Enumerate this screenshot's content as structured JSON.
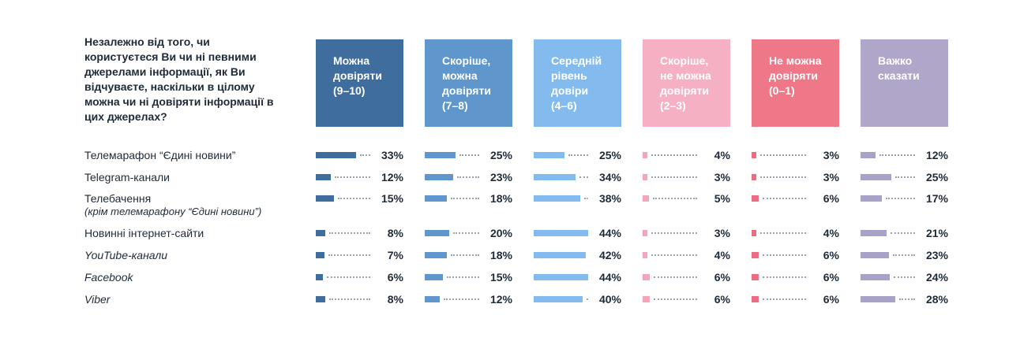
{
  "question": "Незалежно від того, чи користуєтеся Ви чи ні певними джерелами інформації, як Ви відчуваєте, наскільки в цілому можна чи ні довіряти інформації в цих джерелах?",
  "chart_data": {
    "type": "bar",
    "orientation": "horizontal",
    "categories": [
      {
        "label": "Телемарафон “Єдині новини”",
        "sublabel": "",
        "italic": false
      },
      {
        "label": "Telegram-канали",
        "sublabel": "",
        "italic": false
      },
      {
        "label": "Телебачення",
        "sublabel": "(крім телемарафону “Єдині новини”)",
        "italic": false
      },
      {
        "label": "Новинні інтернет-сайти",
        "sublabel": "",
        "italic": false
      },
      {
        "label": "YouTube-канали",
        "sublabel": "",
        "italic": true
      },
      {
        "label": "Facebook",
        "sublabel": "",
        "italic": true
      },
      {
        "label": "Viber",
        "sublabel": "",
        "italic": true
      }
    ],
    "series": [
      {
        "name": "Можна\nдовіряти\n(9–10)",
        "header_color": "#3f6e9e",
        "bar_color": "#3f6e9e",
        "values": [
          33,
          12,
          15,
          8,
          7,
          6,
          8
        ]
      },
      {
        "name": "Скоріше,\nможна\nдовіряти\n(7–8)",
        "header_color": "#5f96cc",
        "bar_color": "#5f96cc",
        "values": [
          25,
          23,
          18,
          20,
          18,
          15,
          12
        ]
      },
      {
        "name": "Середній\nрівень\nдовіри\n(4–6)",
        "header_color": "#84bbef",
        "bar_color": "#84bbef",
        "values": [
          25,
          34,
          38,
          44,
          42,
          44,
          40
        ]
      },
      {
        "name": "Скоріше,\nне можна\nдовіряти\n(2–3)",
        "header_color": "#f5b0c3",
        "bar_color": "#f5a5ba",
        "values": [
          4,
          3,
          5,
          3,
          4,
          6,
          6
        ]
      },
      {
        "name": "Не можна\nдовіряти\n(0–1)",
        "header_color": "#ee7788",
        "bar_color": "#ea6d80",
        "values": [
          3,
          3,
          6,
          4,
          6,
          6,
          6
        ]
      },
      {
        "name": "Важко\nсказати",
        "header_color": "#b0a6c9",
        "bar_color": "#aaa1c7",
        "values": [
          12,
          25,
          17,
          21,
          23,
          24,
          28
        ]
      }
    ],
    "value_suffix": "%",
    "xlim": [
      0,
      100
    ]
  }
}
